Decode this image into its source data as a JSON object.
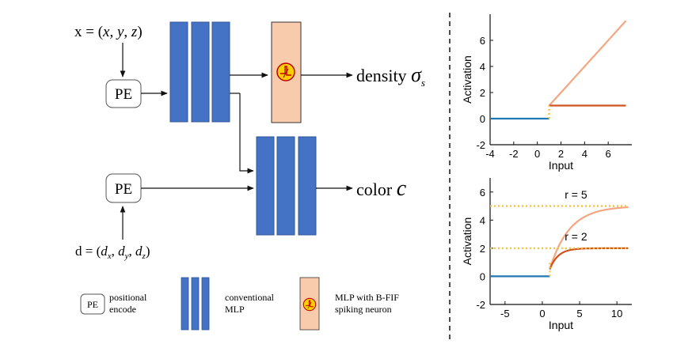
{
  "diagram": {
    "input_x": "x = (x, y, z)",
    "input_d": "d = (d_x, d_y, d_z)",
    "pe_label": "PE",
    "output_density": "density σ_s",
    "output_color": "color c",
    "legend": {
      "pe_box": "PE",
      "pe_text_1": "positional",
      "pe_text_2": "encode",
      "mlp_text_1": "conventional",
      "mlp_text_2": "MLP",
      "spiking_text_1": "MLP with B-FIF",
      "spiking_text_2": "spiking neuron"
    },
    "colors": {
      "mlp_blue": "#4472c4",
      "spiking_fill": "#f8cbad"
    }
  },
  "chart_data": [
    {
      "type": "line",
      "xlabel": "Input",
      "ylabel": "Activation",
      "xlim": [
        -4,
        8
      ],
      "ylim": [
        -2,
        8
      ],
      "xticks": [
        -4,
        -2,
        0,
        2,
        4,
        6
      ],
      "yticks": [
        -2,
        0,
        2,
        4,
        6
      ],
      "threshold_x": 1,
      "series": [
        {
          "color": "#1f77b4",
          "points": [
            [
              -4,
              0
            ],
            [
              1,
              0
            ]
          ]
        },
        {
          "color": "#f4a582",
          "points": [
            [
              1,
              1
            ],
            [
              7.5,
              7.5
            ]
          ]
        },
        {
          "color": "#d2531e",
          "points": [
            [
              1,
              1
            ],
            [
              7.5,
              1
            ]
          ]
        },
        {
          "color": "#f5c242",
          "dotted": true,
          "points": [
            [
              1,
              0
            ],
            [
              1,
              1
            ]
          ]
        }
      ]
    },
    {
      "type": "line",
      "xlabel": "Input",
      "ylabel": "Activation",
      "xlim": [
        -7,
        12
      ],
      "ylim": [
        -2,
        7
      ],
      "xticks": [
        -5,
        0,
        5,
        10
      ],
      "yticks": [
        -2,
        0,
        2,
        4,
        6
      ],
      "threshold_x": 1,
      "annotations": [
        "r = 5",
        "r = 2"
      ],
      "series": [
        {
          "color": "#1f77b4",
          "points": [
            [
              -7,
              0
            ],
            [
              1,
              0
            ]
          ]
        },
        {
          "color": "#f4a582",
          "curve": "saturating",
          "r": 5,
          "k": 0.38,
          "x0": 1,
          "y0": 0.5,
          "x1": 11.5
        },
        {
          "color": "#d2531e",
          "curve": "saturating",
          "r": 2,
          "k": 0.9,
          "x0": 1,
          "y0": 0.5,
          "x1": 11.5
        },
        {
          "color": "#f5c242",
          "dotted": true,
          "points": [
            [
              -7,
              5
            ],
            [
              11.5,
              5
            ]
          ]
        },
        {
          "color": "#f5c242",
          "dotted": true,
          "points": [
            [
              -7,
              2
            ],
            [
              11.5,
              2
            ]
          ]
        },
        {
          "color": "#f5c242",
          "dotted": true,
          "points": [
            [
              1,
              0
            ],
            [
              1,
              1
            ]
          ]
        }
      ]
    }
  ]
}
